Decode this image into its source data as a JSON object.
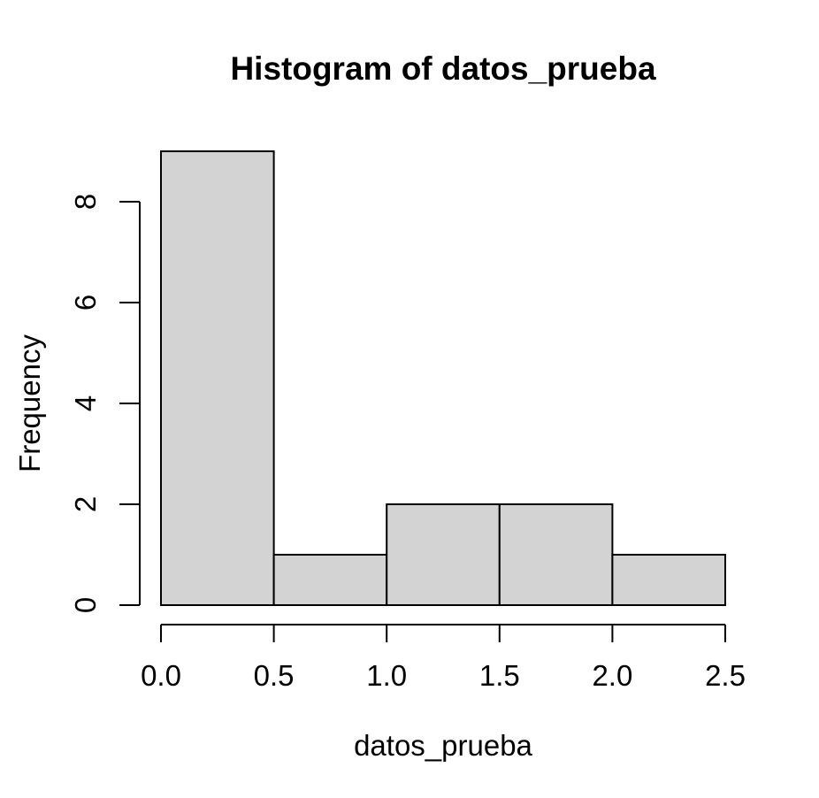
{
  "chart_data": {
    "type": "bar",
    "subtype": "histogram",
    "title": "Histogram of datos_prueba",
    "xlabel": "datos_prueba",
    "ylabel": "Frequency",
    "bin_edges": [
      0.0,
      0.5,
      1.0,
      1.5,
      2.0,
      2.5
    ],
    "categories": [
      "0.0-0.5",
      "0.5-1.0",
      "1.0-1.5",
      "1.5-2.0",
      "2.0-2.5"
    ],
    "values": [
      9,
      1,
      2,
      2,
      1
    ],
    "x_ticks": [
      0.0,
      0.5,
      1.0,
      1.5,
      2.0,
      2.5
    ],
    "x_tick_labels": [
      "0.0",
      "0.5",
      "1.0",
      "1.5",
      "2.0",
      "2.5"
    ],
    "y_ticks": [
      0,
      2,
      4,
      6,
      8
    ],
    "y_tick_labels": [
      "0",
      "2",
      "4",
      "6",
      "8"
    ],
    "xlim": [
      0.0,
      2.5
    ],
    "ylim": [
      0,
      9
    ],
    "grid": false,
    "legend": null,
    "colors": {
      "bar_fill": "#d3d3d3",
      "bar_stroke": "#000000",
      "text": "#000000",
      "background": "#ffffff"
    }
  }
}
